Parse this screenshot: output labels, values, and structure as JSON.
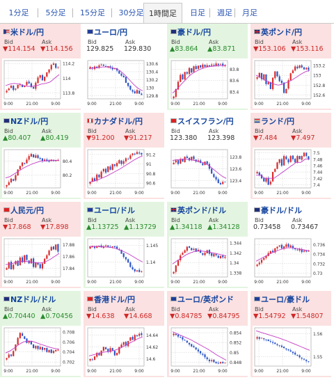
{
  "tabs": [
    {
      "label": "1分足",
      "active": false
    },
    {
      "label": "5分足",
      "active": false
    },
    {
      "label": "15分足",
      "active": false
    },
    {
      "label": "30分足",
      "active": false
    },
    {
      "label": "1時間足",
      "active": true
    },
    {
      "label": "日足",
      "active": false
    },
    {
      "label": "週足",
      "active": false
    },
    {
      "label": "月足",
      "active": false
    }
  ],
  "labels": {
    "bid": "Bid",
    "ask": "Ask"
  },
  "colors": {
    "up_bg": "#e3f5e0",
    "down_bg": "#fbe1e1",
    "up_text": "#2a8b2f",
    "down_text": "#d02828",
    "candle_up": "#d92b2b",
    "candle_down": "#2d56c8",
    "ma": "#c53bc5"
  },
  "panels": [
    {
      "name": "米ドル/円",
      "flag": "us",
      "dir": "down",
      "bid": "114.154",
      "ask": "114.156",
      "chart_data": {
        "type": "candlestick",
        "x_ticks": [
          "9:00",
          "21:00",
          "9:00"
        ],
        "y_ticks": [
          "114.2",
          "114",
          "113.8"
        ],
        "ylim": [
          113.72,
          114.24
        ],
        "trend": "up",
        "close_path": [
          113.83,
          113.86,
          113.9,
          113.84,
          113.86,
          113.91,
          113.92,
          113.88,
          113.9,
          113.95,
          113.93,
          113.88,
          113.86,
          113.94,
          114.01,
          114.04,
          113.97,
          114.02,
          114.08,
          114.12,
          114.18,
          114.2,
          114.14,
          114.15
        ],
        "ma_path": [
          113.9,
          113.92,
          113.93,
          113.92,
          113.9,
          113.89,
          113.89,
          113.9,
          113.92,
          113.93,
          113.95,
          114.0,
          114.05
        ]
      }
    },
    {
      "name": "ユーロ/円",
      "flag": "eu",
      "dir": "flat",
      "bid": "129.825",
      "ask": "129.830",
      "chart_data": {
        "type": "candlestick",
        "x_ticks": [
          "9:00",
          "21:00",
          "9:00"
        ],
        "y_ticks": [
          "130.6",
          "130.4",
          "130.2",
          "130",
          "129.8"
        ],
        "ylim": [
          129.72,
          130.68
        ],
        "trend": "down",
        "close_path": [
          130.52,
          130.48,
          130.53,
          130.5,
          130.56,
          130.58,
          130.55,
          130.52,
          130.54,
          130.5,
          130.46,
          130.48,
          130.43,
          130.35,
          130.3,
          130.26,
          130.12,
          130.04,
          129.95,
          129.9,
          129.86,
          129.94,
          129.85,
          129.82
        ],
        "ma_path": [
          130.48,
          130.49,
          130.5,
          130.52,
          130.52,
          130.5,
          130.48,
          130.42,
          130.32,
          130.2,
          130.08,
          129.98,
          129.92
        ]
      }
    },
    {
      "name": "豪ドル/円",
      "flag": "au",
      "dir": "up",
      "bid": "83.864",
      "ask": "83.871",
      "chart_data": {
        "type": "candlestick",
        "x_ticks": [
          "9:00",
          "21:00",
          "9:00"
        ],
        "y_ticks": [
          "83.8",
          "83.6",
          "83.4"
        ],
        "ylim": [
          83.28,
          83.95
        ],
        "trend": "up",
        "close_path": [
          83.32,
          83.45,
          83.58,
          83.7,
          83.62,
          83.75,
          83.72,
          83.82,
          83.74,
          83.85,
          83.8,
          83.86,
          83.83,
          83.88,
          83.84,
          83.87,
          83.85,
          83.88,
          83.86,
          83.9,
          83.87,
          83.89,
          83.86,
          83.86
        ],
        "ma_path": [
          83.38,
          83.45,
          83.54,
          83.62,
          83.7,
          83.75,
          83.79,
          83.82,
          83.84,
          83.85,
          83.86,
          83.86,
          83.87
        ]
      }
    },
    {
      "name": "英ポンド/円",
      "flag": "gb",
      "dir": "down",
      "bid": "153.106",
      "ask": "153.116",
      "chart_data": {
        "type": "candlestick",
        "x_ticks": [
          "9:00",
          "21:00",
          "9:00"
        ],
        "y_ticks": [
          "153.2",
          "153",
          "152.8",
          "152.6"
        ],
        "ylim": [
          152.52,
          153.3
        ],
        "trend": "mixed",
        "close_path": [
          152.96,
          153.05,
          152.92,
          153.02,
          152.82,
          152.86,
          152.72,
          152.95,
          153.08,
          152.98,
          152.88,
          152.84,
          152.64,
          152.72,
          152.9,
          153.04,
          153.1,
          153.18,
          153.14,
          153.2,
          153.16,
          153.12,
          153.15,
          153.11
        ],
        "ma_path": [
          153.0,
          152.96,
          152.9,
          152.86,
          152.82,
          152.8,
          152.82,
          152.86,
          152.9,
          152.96,
          153.02,
          153.07,
          153.1
        ]
      }
    },
    {
      "name": "NZドル/円",
      "flag": "nz",
      "dir": "up",
      "bid": "80.407",
      "ask": "80.419",
      "chart_data": {
        "type": "candlestick",
        "x_ticks": [
          "9:00",
          "21:00",
          "9:00"
        ],
        "y_ticks": [
          "80.4",
          "80.2"
        ],
        "ylim": [
          80.02,
          80.56
        ],
        "trend": "up",
        "close_path": [
          80.06,
          80.1,
          80.15,
          80.12,
          80.2,
          80.28,
          80.33,
          80.38,
          80.36,
          80.42,
          80.47,
          80.5,
          80.45,
          80.48,
          80.44,
          80.43,
          80.4,
          80.42,
          80.4,
          80.39,
          80.42,
          80.4,
          80.41,
          80.41
        ],
        "ma_path": [
          80.16,
          80.18,
          80.22,
          80.26,
          80.3,
          80.33,
          80.36,
          80.38,
          80.4,
          80.4,
          80.41,
          80.41,
          80.41
        ]
      }
    },
    {
      "name": "カナダドル/円",
      "flag": "ca",
      "dir": "down",
      "bid": "91.200",
      "ask": "91.217",
      "chart_data": {
        "type": "candlestick",
        "x_ticks": [
          "9:00",
          "21:00",
          "9:00"
        ],
        "y_ticks": [
          "91.2",
          "91",
          "90.8",
          "90.6"
        ],
        "ylim": [
          90.5,
          91.3
        ],
        "trend": "up",
        "close_path": [
          90.62,
          90.7,
          90.64,
          90.78,
          90.72,
          90.84,
          90.9,
          90.82,
          90.95,
          90.88,
          91.0,
          90.96,
          91.02,
          91.08,
          91.0,
          91.06,
          91.12,
          91.1,
          91.18,
          91.22,
          91.2,
          91.25,
          91.22,
          91.2
        ],
        "ma_path": [
          90.62,
          90.64,
          90.67,
          90.71,
          90.75,
          90.8,
          90.85,
          90.9,
          90.96,
          91.02,
          91.08,
          91.13,
          91.17
        ]
      }
    },
    {
      "name": "スイスフラン/円",
      "flag": "ch",
      "dir": "flat",
      "bid": "123.380",
      "ask": "123.398",
      "chart_data": {
        "type": "candlestick",
        "x_ticks": [
          "9:00",
          "21:00",
          "9:00"
        ],
        "y_ticks": [
          "123.8",
          "123.6",
          "123.4"
        ],
        "ylim": [
          123.28,
          123.92
        ],
        "trend": "down",
        "close_path": [
          123.7,
          123.74,
          123.68,
          123.76,
          123.72,
          123.8,
          123.78,
          123.74,
          123.8,
          123.76,
          123.72,
          123.74,
          123.7,
          123.66,
          123.72,
          123.68,
          123.6,
          123.52,
          123.46,
          123.42,
          123.36,
          123.34,
          123.38,
          123.38
        ],
        "ma_path": [
          123.74,
          123.75,
          123.76,
          123.76,
          123.75,
          123.74,
          123.72,
          123.7,
          123.66,
          123.6,
          123.54,
          123.48,
          123.44
        ]
      }
    },
    {
      "name": "ランド/円",
      "flag": "za",
      "dir": "down",
      "bid": "7.484",
      "ask": "7.497",
      "chart_data": {
        "type": "candlestick",
        "x_ticks": [
          "9:00",
          "21:00",
          "9:00"
        ],
        "y_ticks": [
          "7.5",
          "7.48",
          "7.46",
          "7.44",
          "7.42",
          "7.4"
        ],
        "ylim": [
          7.39,
          7.51
        ],
        "trend": "up",
        "close_path": [
          7.44,
          7.43,
          7.42,
          7.41,
          7.42,
          7.4,
          7.41,
          7.44,
          7.45,
          7.47,
          7.48,
          7.46,
          7.49,
          7.48,
          7.47,
          7.49,
          7.48,
          7.47,
          7.49,
          7.48,
          7.49,
          7.5,
          7.49,
          7.48
        ],
        "ma_path": [
          7.43,
          7.43,
          7.42,
          7.42,
          7.42,
          7.43,
          7.44,
          7.45,
          7.46,
          7.47,
          7.47,
          7.48,
          7.48
        ]
      }
    },
    {
      "name": "人民元/円",
      "flag": "cn",
      "dir": "down",
      "bid": "17.868",
      "ask": "17.898",
      "chart_data": {
        "type": "candlestick",
        "x_ticks": [
          "9:00",
          "21:00",
          "9:00"
        ],
        "y_ticks": [
          "17.88",
          "17.86",
          "17.84"
        ],
        "ylim": [
          17.825,
          17.89
        ],
        "trend": "up",
        "close_path": [
          17.84,
          17.85,
          17.838,
          17.846,
          17.852,
          17.844,
          17.858,
          17.85,
          17.862,
          17.854,
          17.848,
          17.856,
          17.842,
          17.85,
          17.846,
          17.84,
          17.848,
          17.856,
          17.862,
          17.87,
          17.876,
          17.872,
          17.88,
          17.868
        ],
        "ma_path": [
          17.846,
          17.847,
          17.849,
          17.851,
          17.852,
          17.851,
          17.85,
          17.849,
          17.849,
          17.851,
          17.855,
          17.86,
          17.865
        ]
      }
    },
    {
      "name": "ユーロ/ドル",
      "flag": "eu",
      "dir": "up",
      "bid": "1.13725",
      "ask": "1.13729",
      "chart_data": {
        "type": "candlestick",
        "x_ticks": [
          "9:00",
          "21:00",
          "9:00"
        ],
        "y_ticks": [
          "1.145",
          "1.14"
        ],
        "ylim": [
          1.1355,
          1.147
        ],
        "trend": "down",
        "close_path": [
          1.1445,
          1.1448,
          1.1442,
          1.1446,
          1.1449,
          1.1444,
          1.1447,
          1.145,
          1.1446,
          1.1443,
          1.1447,
          1.1445,
          1.144,
          1.1436,
          1.1425,
          1.1415,
          1.1408,
          1.1398,
          1.1385,
          1.1378,
          1.1372,
          1.1375,
          1.137,
          1.1372
        ],
        "ma_path": [
          1.1446,
          1.1447,
          1.1447,
          1.1446,
          1.1445,
          1.1444,
          1.1441,
          1.1436,
          1.143,
          1.1423,
          1.1415,
          1.1407,
          1.14
        ]
      }
    },
    {
      "name": "英ポンド/ドル",
      "flag": "gb",
      "dir": "up",
      "bid": "1.34118",
      "ask": "1.34128",
      "chart_data": {
        "type": "candlestick",
        "x_ticks": [
          "9:00",
          "21:00",
          "9:00"
        ],
        "y_ticks": [
          "1.344",
          "1.342",
          "1.34",
          "1.338"
        ],
        "ylim": [
          1.3372,
          1.3448
        ],
        "trend": "mixed",
        "close_path": [
          1.3382,
          1.3395,
          1.3405,
          1.3415,
          1.342,
          1.3425,
          1.3432,
          1.343,
          1.3425,
          1.3428,
          1.3422,
          1.3426,
          1.342,
          1.3416,
          1.342,
          1.3425,
          1.3418,
          1.3414,
          1.3418,
          1.3415,
          1.341,
          1.3414,
          1.3411,
          1.3412
        ],
        "ma_path": [
          1.3398,
          1.3404,
          1.341,
          1.3416,
          1.342,
          1.3423,
          1.3424,
          1.3423,
          1.3422,
          1.342,
          1.3418,
          1.3416,
          1.3414
        ]
      }
    },
    {
      "name": "豪ドル/ドル",
      "flag": "au",
      "dir": "flat",
      "bid": "0.73458",
      "ask": "0.73467",
      "chart_data": {
        "type": "candlestick",
        "x_ticks": [
          "9:00",
          "21:00",
          "9:00"
        ],
        "y_ticks": [
          "0.736",
          "0.734",
          "0.732",
          "0.73"
        ],
        "ylim": [
          0.7292,
          0.7372
        ],
        "trend": "up",
        "close_path": [
          0.7318,
          0.7322,
          0.7328,
          0.7332,
          0.7336,
          0.7342,
          0.7346,
          0.7344,
          0.7352,
          0.7355,
          0.7358,
          0.7352,
          0.7356,
          0.736,
          0.7355,
          0.7358,
          0.7352,
          0.735,
          0.7348,
          0.735,
          0.7344,
          0.7347,
          0.7345,
          0.7346
        ],
        "ma_path": [
          0.7325,
          0.733,
          0.7335,
          0.734,
          0.7344,
          0.7348,
          0.7351,
          0.7353,
          0.7353,
          0.7352,
          0.735,
          0.7348,
          0.7347
        ]
      }
    },
    {
      "name": "NZドル/ドル",
      "flag": "nz",
      "dir": "up",
      "bid": "0.70440",
      "ask": "0.70456",
      "chart_data": {
        "type": "candlestick",
        "x_ticks": [
          "9:00",
          "21:00",
          "9:00"
        ],
        "y_ticks": [
          "0.708",
          "0.706",
          "0.704",
          "0.702"
        ],
        "ylim": [
          0.7012,
          0.7088
        ],
        "trend": "mixed",
        "close_path": [
          0.7028,
          0.7035,
          0.7032,
          0.7042,
          0.7055,
          0.7068,
          0.7078,
          0.7072,
          0.7066,
          0.7058,
          0.7062,
          0.7055,
          0.7048,
          0.7052,
          0.7046,
          0.705,
          0.7044,
          0.7048,
          0.704,
          0.7044,
          0.7038,
          0.7042,
          0.7044,
          0.7044
        ],
        "ma_path": [
          0.7038,
          0.7042,
          0.7048,
          0.7055,
          0.706,
          0.7062,
          0.7061,
          0.7058,
          0.7055,
          0.7052,
          0.7049,
          0.7047,
          0.7045
        ]
      }
    },
    {
      "name": "香港ドル/円",
      "flag": "hk",
      "dir": "down",
      "bid": "14.638",
      "ask": "14.668",
      "chart_data": {
        "type": "candlestick",
        "x_ticks": [
          "9:00",
          "21:00",
          "9:00"
        ],
        "y_ticks": [
          "14.64",
          "14.62",
          "14.6"
        ],
        "ylim": [
          14.588,
          14.652
        ],
        "trend": "up",
        "close_path": [
          14.6,
          14.598,
          14.604,
          14.61,
          14.606,
          14.614,
          14.62,
          14.616,
          14.612,
          14.618,
          14.614,
          14.606,
          14.61,
          14.62,
          14.624,
          14.628,
          14.622,
          14.63,
          14.636,
          14.632,
          14.64,
          14.638,
          14.642,
          14.64
        ],
        "ma_path": [
          14.605,
          14.607,
          14.609,
          14.611,
          14.612,
          14.613,
          14.615,
          14.618,
          14.622,
          14.626,
          14.63,
          14.634,
          14.637
        ]
      }
    },
    {
      "name": "ユーロ/英ポンド",
      "flag": "eu",
      "dir": "down",
      "bid": "0.84785",
      "ask": "0.84795",
      "chart_data": {
        "type": "candlestick",
        "x_ticks": [
          "9:00",
          "21:00",
          "9:00"
        ],
        "y_ticks": [
          "0.854",
          "0.852",
          "0.85",
          "0.848"
        ],
        "ylim": [
          0.8472,
          0.855
        ],
        "trend": "down",
        "close_path": [
          0.8538,
          0.8535,
          0.8532,
          0.853,
          0.8526,
          0.8524,
          0.852,
          0.8516,
          0.8512,
          0.851,
          0.8506,
          0.8502,
          0.8498,
          0.8495,
          0.849,
          0.8486,
          0.8482,
          0.8484,
          0.848,
          0.8478,
          0.8477,
          0.848,
          0.8478,
          0.8479
        ],
        "ma_path": [
          0.8542,
          0.8538,
          0.8534,
          0.853,
          0.8526,
          0.8521,
          0.8516,
          0.8511,
          0.8506,
          0.85,
          0.8494,
          0.8489,
          0.8484
        ]
      }
    },
    {
      "name": "ユーロ/豪ドル",
      "flag": "eu",
      "dir": "down",
      "bid": "1.54792",
      "ask": "1.54807",
      "chart_data": {
        "type": "candlestick",
        "x_ticks": [
          "9:00",
          "21:00",
          "9:00"
        ],
        "y_ticks": [
          "1.56",
          "1.55"
        ],
        "ylim": [
          1.546,
          1.5625
        ],
        "trend": "down",
        "close_path": [
          1.5585,
          1.5578,
          1.5582,
          1.5576,
          1.5572,
          1.5568,
          1.5565,
          1.556,
          1.5555,
          1.555,
          1.5548,
          1.5542,
          1.5538,
          1.5532,
          1.5528,
          1.5522,
          1.5516,
          1.551,
          1.5505,
          1.5498,
          1.5492,
          1.5488,
          1.5482,
          1.5479
        ],
        "ma_path": [
          1.5612,
          1.5606,
          1.56,
          1.5594,
          1.5588,
          1.5582,
          1.5575,
          1.5568,
          1.556,
          1.5552,
          1.5544,
          1.5536,
          1.5528
        ]
      }
    }
  ]
}
